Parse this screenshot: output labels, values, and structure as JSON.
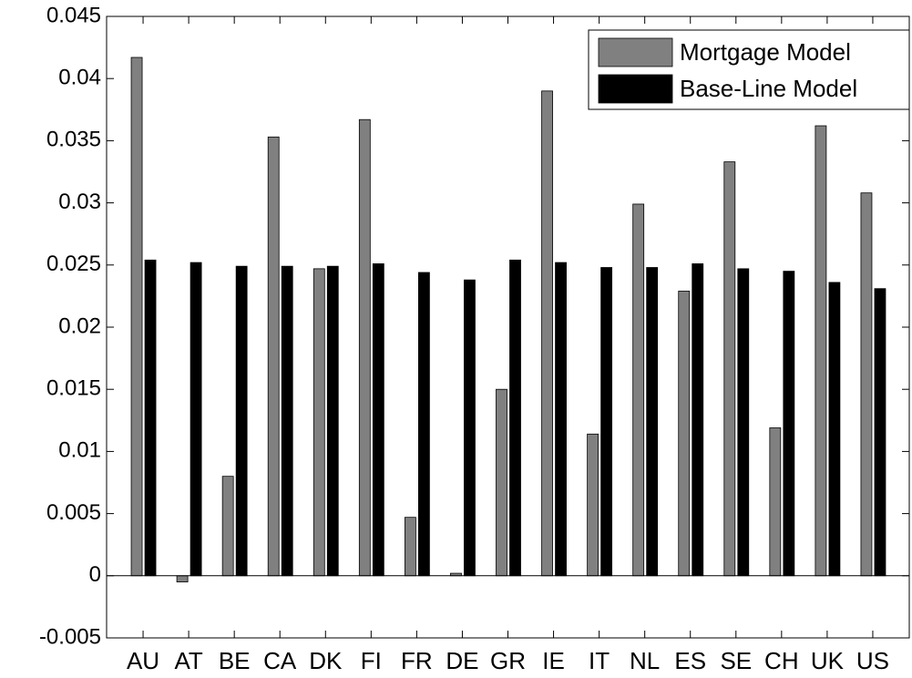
{
  "chart_data": {
    "type": "bar",
    "categories": [
      "AU",
      "AT",
      "BE",
      "CA",
      "DK",
      "FI",
      "FR",
      "DE",
      "GR",
      "IE",
      "IT",
      "NL",
      "ES",
      "SE",
      "CH",
      "UK",
      "US"
    ],
    "series": [
      {
        "name": "Mortgage Model",
        "color": "#808080",
        "values": [
          0.0417,
          -0.0005,
          0.008,
          0.0353,
          0.0247,
          0.0367,
          0.0047,
          0.0002,
          0.015,
          0.039,
          0.0114,
          0.0299,
          0.0229,
          0.0333,
          0.0119,
          0.0362,
          0.0308
        ]
      },
      {
        "name": "Base-Line Model",
        "color": "#000000",
        "values": [
          0.0254,
          0.0252,
          0.0249,
          0.0249,
          0.0249,
          0.0251,
          0.0244,
          0.0238,
          0.0254,
          0.0252,
          0.0248,
          0.0248,
          0.0251,
          0.0247,
          0.0245,
          0.0236,
          0.0231
        ]
      }
    ],
    "ylim": [
      -0.005,
      0.045
    ],
    "yticks": [
      -0.005,
      0,
      0.005,
      0.01,
      0.015,
      0.02,
      0.025,
      0.03,
      0.035,
      0.04,
      0.045
    ],
    "legend": "northeast"
  }
}
